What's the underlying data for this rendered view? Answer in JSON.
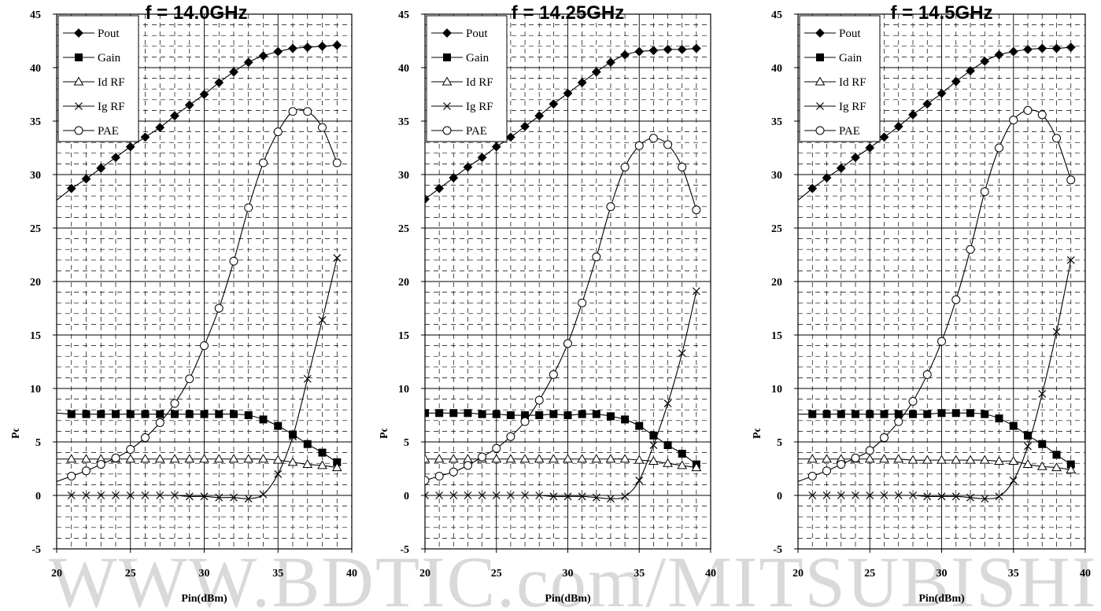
{
  "watermark": "WWW.BDTIC.com/MITSUBISHI",
  "chart_data": [
    {
      "type": "line",
      "title": "f = 14.0GHz",
      "xlabel": "Pin(dBm)",
      "ylabel": "Pout(dBm), Glp(dB), PAE(%), Id(A), Ig(mA",
      "xlim": [
        20,
        40
      ],
      "ylim": [
        -5,
        45
      ],
      "xticks": [
        "20",
        "25",
        "30",
        "35",
        "40"
      ],
      "yticks": [
        "-5",
        "0",
        "5",
        "10",
        "15",
        "20",
        "25",
        "30",
        "35",
        "40",
        "45"
      ],
      "grid": true,
      "legend_position": "top-left",
      "x": [
        21,
        22,
        23,
        24,
        25,
        26,
        27,
        28,
        29,
        30,
        31,
        32,
        33,
        34,
        35,
        36,
        37,
        38,
        39
      ],
      "series": [
        {
          "name": "Pout",
          "marker": "diamond",
          "values": [
            28.7,
            29.6,
            30.6,
            31.6,
            32.6,
            33.5,
            34.4,
            35.5,
            36.5,
            37.5,
            38.6,
            39.6,
            40.5,
            41.1,
            41.5,
            41.8,
            41.9,
            42.0,
            42.1
          ]
        },
        {
          "name": "Gain",
          "marker": "square",
          "values": [
            7.6,
            7.6,
            7.6,
            7.6,
            7.6,
            7.6,
            7.6,
            7.6,
            7.6,
            7.6,
            7.6,
            7.6,
            7.5,
            7.1,
            6.5,
            5.7,
            4.8,
            4.0,
            3.1
          ]
        },
        {
          "name": "Id RF",
          "marker": "triangle",
          "values": [
            3.4,
            3.4,
            3.4,
            3.4,
            3.4,
            3.4,
            3.4,
            3.4,
            3.4,
            3.4,
            3.4,
            3.4,
            3.4,
            3.4,
            3.3,
            3.1,
            2.9,
            2.8,
            2.6
          ]
        },
        {
          "name": "Ig RF",
          "marker": "x",
          "values": [
            0.0,
            0.0,
            0.0,
            0.0,
            0.0,
            0.0,
            0.0,
            0.0,
            -0.1,
            -0.1,
            -0.2,
            -0.2,
            -0.3,
            0.1,
            2.0,
            5.5,
            10.9,
            16.4,
            22.2
          ]
        },
        {
          "name": "PAE",
          "marker": "circle",
          "values": [
            1.8,
            2.3,
            2.9,
            3.5,
            4.3,
            5.4,
            6.8,
            8.6,
            10.9,
            14.0,
            17.5,
            21.9,
            26.9,
            31.1,
            34.0,
            35.9,
            35.9,
            34.4,
            31.1
          ]
        }
      ],
      "trend_left": {
        "Pout": 27.6,
        "Gain": 7.7,
        "Id RF": 3.4,
        "Ig RF": 0.0,
        "PAE": 1.3
      }
    },
    {
      "type": "line",
      "title": "f = 14.25GHz",
      "xlabel": "Pin(dBm)",
      "ylabel": "Pout(dBm), Glp(dB), PAE(%), Id(A), Ig(mA",
      "xlim": [
        20,
        40
      ],
      "ylim": [
        -5,
        45
      ],
      "xticks": [
        "20",
        "25",
        "30",
        "35",
        "40"
      ],
      "yticks": [
        "-5",
        "0",
        "5",
        "10",
        "15",
        "20",
        "25",
        "30",
        "35",
        "40",
        "45"
      ],
      "grid": true,
      "legend_position": "top-left",
      "x": [
        20,
        21,
        22,
        23,
        24,
        25,
        26,
        27,
        28,
        29,
        30,
        31,
        32,
        33,
        34,
        35,
        36,
        37,
        38,
        39
      ],
      "series": [
        {
          "name": "Pout",
          "marker": "diamond",
          "values": [
            27.7,
            28.7,
            29.7,
            30.7,
            31.6,
            32.6,
            33.5,
            34.5,
            35.5,
            36.6,
            37.6,
            38.6,
            39.6,
            40.5,
            41.2,
            41.5,
            41.6,
            41.7,
            41.7,
            41.8
          ]
        },
        {
          "name": "Gain",
          "marker": "square",
          "values": [
            7.7,
            7.7,
            7.7,
            7.7,
            7.6,
            7.6,
            7.5,
            7.5,
            7.5,
            7.6,
            7.5,
            7.6,
            7.6,
            7.4,
            7.1,
            6.5,
            5.6,
            4.7,
            3.9,
            2.9
          ]
        },
        {
          "name": "Id RF",
          "marker": "triangle",
          "values": [
            3.4,
            3.4,
            3.4,
            3.4,
            3.4,
            3.4,
            3.4,
            3.4,
            3.4,
            3.4,
            3.4,
            3.4,
            3.4,
            3.4,
            3.4,
            3.3,
            3.2,
            3.0,
            2.8,
            2.6
          ]
        },
        {
          "name": "Ig RF",
          "marker": "x",
          "values": [
            0.0,
            0.0,
            0.0,
            0.0,
            0.0,
            0.0,
            0.0,
            0.0,
            0.0,
            -0.1,
            -0.1,
            -0.1,
            -0.2,
            -0.3,
            -0.1,
            1.4,
            4.7,
            8.6,
            13.3,
            19.1
          ]
        },
        {
          "name": "PAE",
          "marker": "circle",
          "values": [
            1.4,
            1.8,
            2.2,
            2.8,
            3.6,
            4.4,
            5.5,
            6.9,
            8.9,
            11.3,
            14.2,
            18.0,
            22.3,
            27.0,
            30.7,
            32.7,
            33.4,
            32.8,
            30.7,
            26.7
          ]
        }
      ]
    },
    {
      "type": "line",
      "title": "f = 14.5GHz",
      "xlabel": "Pin(dBm)",
      "ylabel": "Pout(dBm), Glp(dB), PAE(%), Id(A), Ig(mA",
      "xlim": [
        20,
        40
      ],
      "ylim": [
        -5,
        45
      ],
      "xticks": [
        "20",
        "25",
        "30",
        "35",
        "40"
      ],
      "yticks": [
        "-5",
        "0",
        "5",
        "10",
        "15",
        "20",
        "25",
        "30",
        "35",
        "40",
        "45"
      ],
      "grid": true,
      "legend_position": "top-left",
      "x": [
        21,
        22,
        23,
        24,
        25,
        26,
        27,
        28,
        29,
        30,
        31,
        32,
        33,
        34,
        35,
        36,
        37,
        38,
        39
      ],
      "series": [
        {
          "name": "Pout",
          "marker": "diamond",
          "values": [
            28.7,
            29.7,
            30.6,
            31.6,
            32.5,
            33.5,
            34.5,
            35.6,
            36.6,
            37.6,
            38.7,
            39.7,
            40.6,
            41.2,
            41.5,
            41.7,
            41.8,
            41.8,
            41.9
          ]
        },
        {
          "name": "Gain",
          "marker": "square",
          "values": [
            7.6,
            7.6,
            7.6,
            7.6,
            7.6,
            7.6,
            7.6,
            7.6,
            7.6,
            7.7,
            7.7,
            7.7,
            7.6,
            7.2,
            6.5,
            5.6,
            4.8,
            3.8,
            2.9
          ]
        },
        {
          "name": "Id RF",
          "marker": "triangle",
          "values": [
            3.4,
            3.4,
            3.4,
            3.4,
            3.4,
            3.4,
            3.4,
            3.3,
            3.3,
            3.3,
            3.3,
            3.3,
            3.3,
            3.2,
            3.2,
            2.9,
            2.7,
            2.6,
            2.4
          ]
        },
        {
          "name": "Ig RF",
          "marker": "x",
          "values": [
            0.0,
            0.0,
            0.0,
            0.0,
            0.0,
            0.0,
            0.0,
            0.0,
            -0.1,
            -0.1,
            -0.1,
            -0.2,
            -0.3,
            -0.1,
            1.4,
            4.6,
            9.5,
            15.3,
            22.0
          ]
        },
        {
          "name": "PAE",
          "marker": "circle",
          "values": [
            1.8,
            2.3,
            2.9,
            3.5,
            4.2,
            5.4,
            6.9,
            8.8,
            11.3,
            14.4,
            18.3,
            23.0,
            28.4,
            32.5,
            35.1,
            36.0,
            35.6,
            33.4,
            29.5
          ]
        }
      ],
      "trend_left": {
        "Pout": 27.6,
        "Gain": 7.6,
        "Id RF": 3.4,
        "Ig RF": 0.0,
        "PAE": 1.3
      }
    }
  ]
}
